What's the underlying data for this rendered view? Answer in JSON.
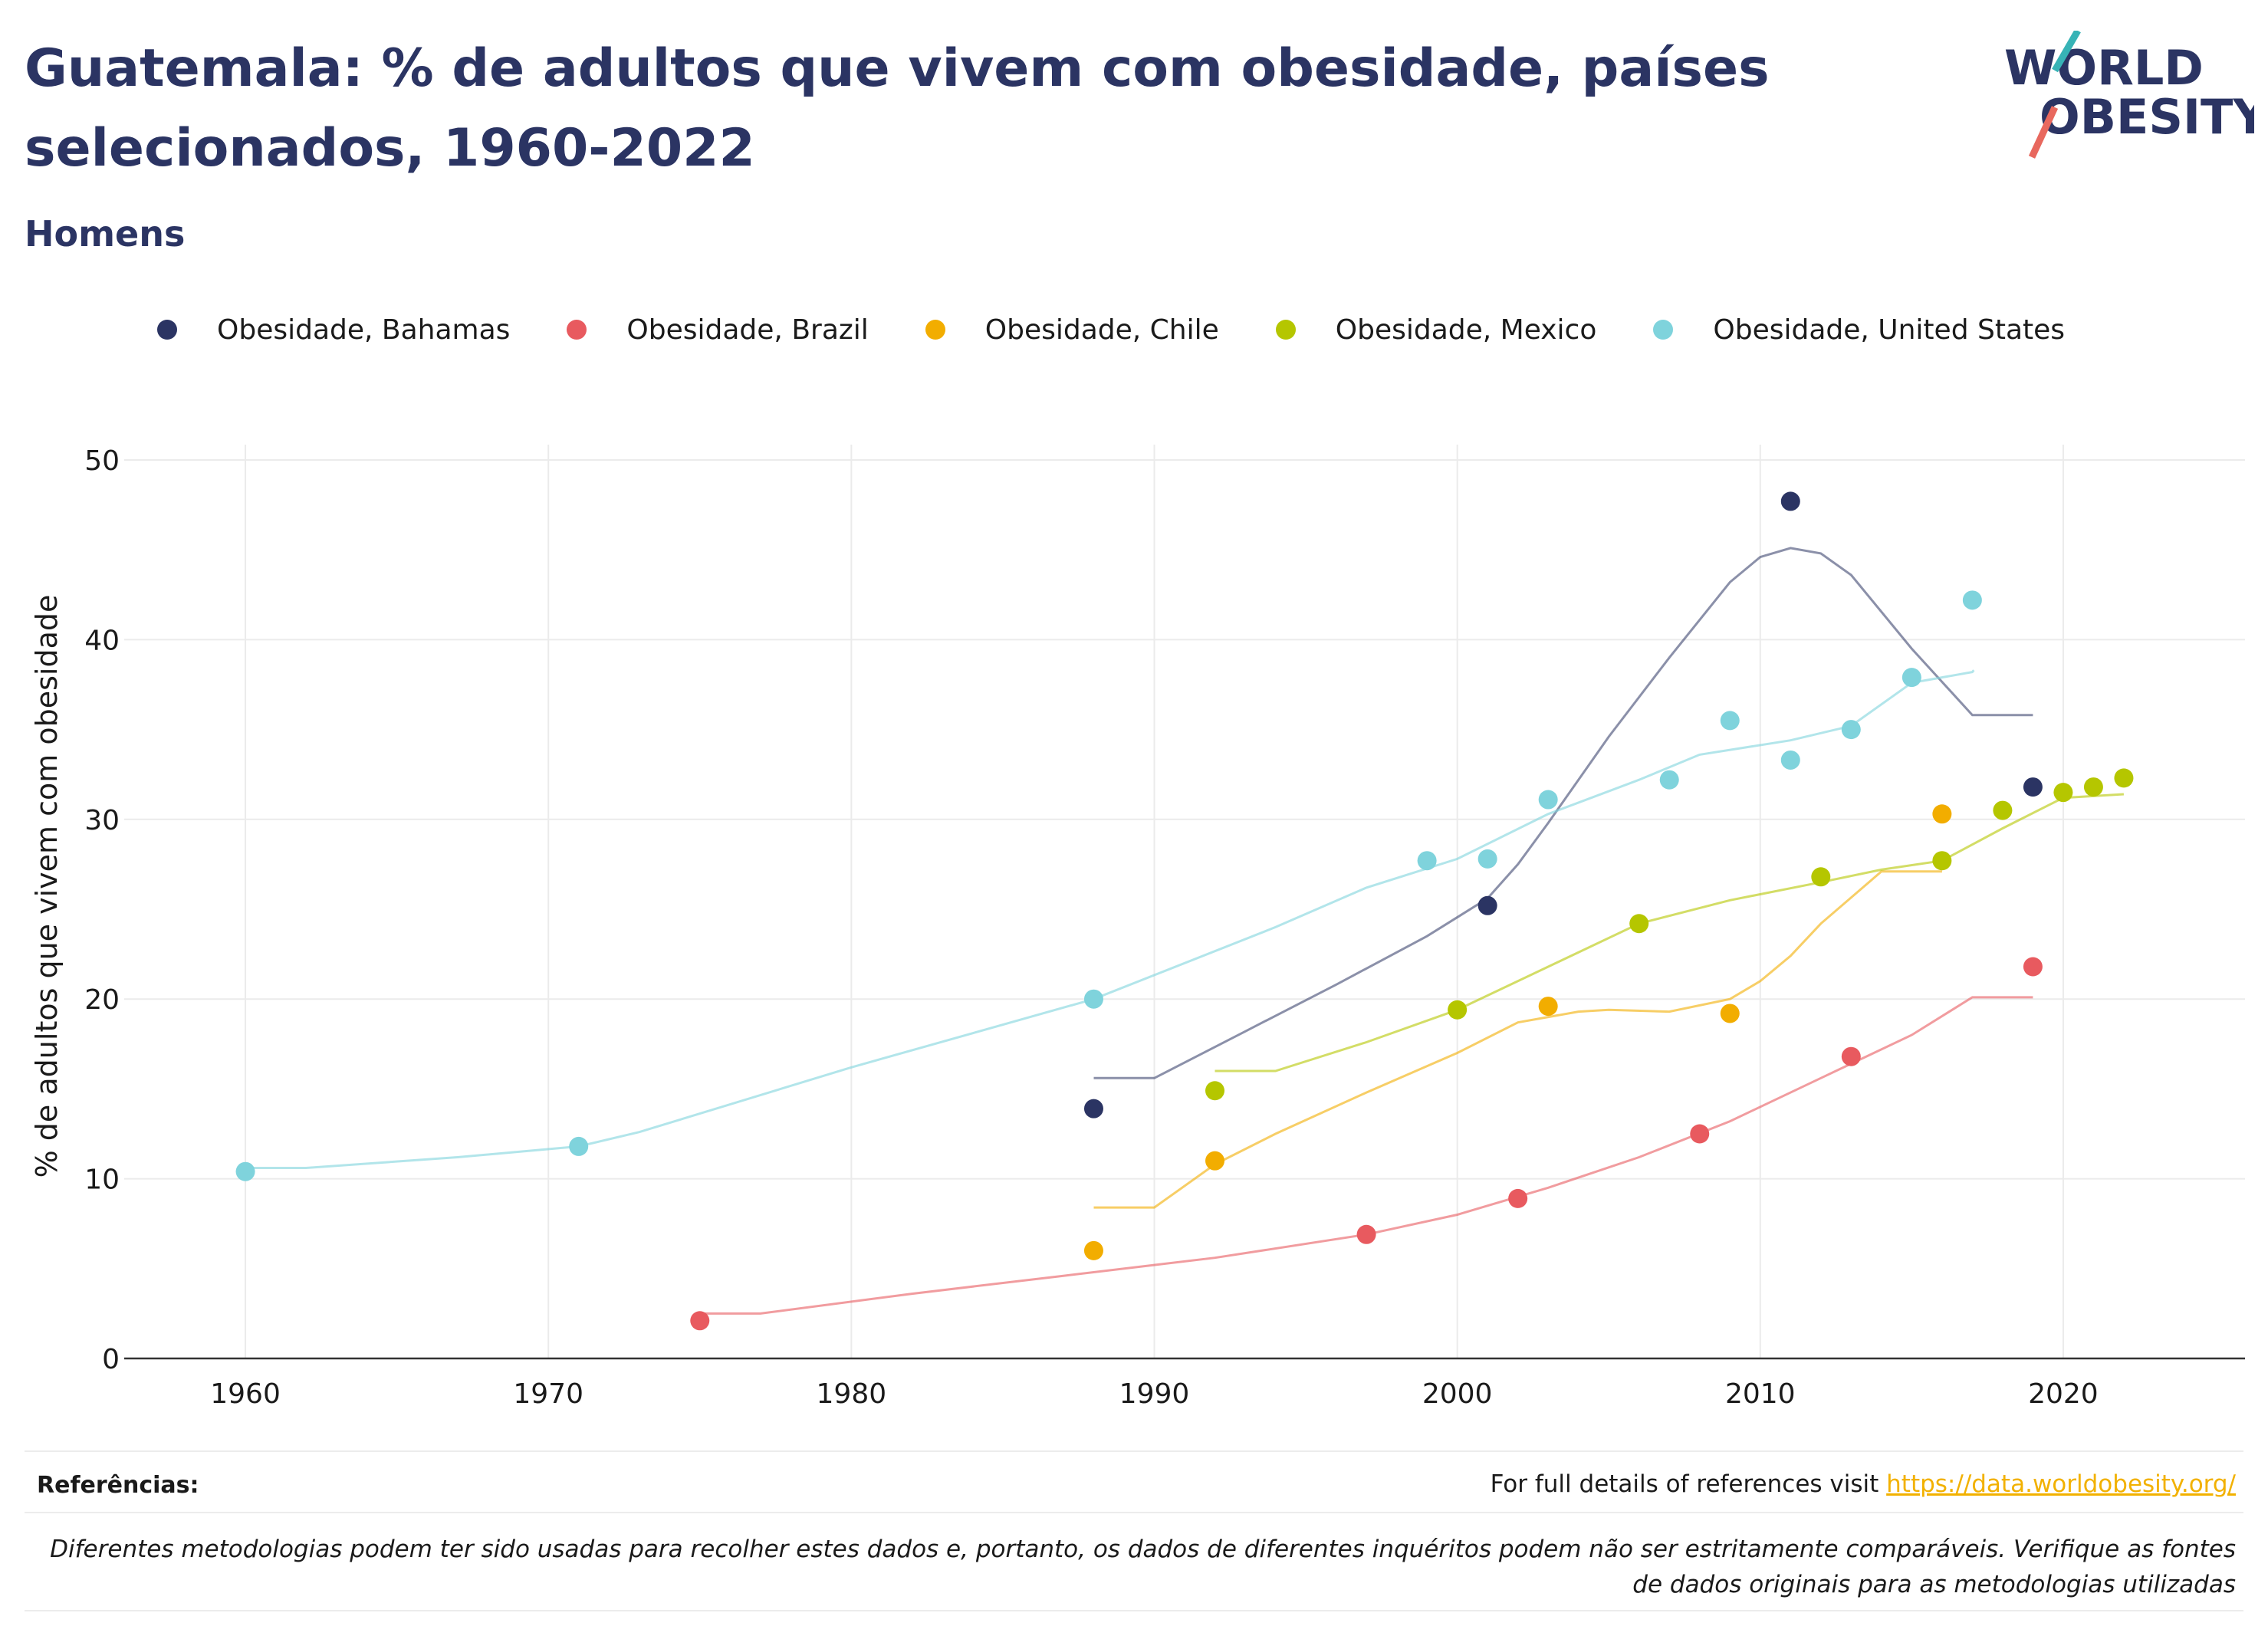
{
  "title": "Guatemala: % de adultos que vivem com obesidade, países selecionados, 1960-2022",
  "subtitle": "Homens",
  "logo": {
    "line1": "WORLD",
    "line2": "OBESITY"
  },
  "footer": {
    "refs_label": "Referências:",
    "refs_text": "For full details of references visit ",
    "refs_link": "https://data.worldobesity.org/",
    "note": "Diferentes metodologias podem ter sido usadas para recolher estes dados e, portanto, os dados de diferentes inquéritos podem não ser estritamente comparáveis. Verifique as fontes de dados originais para as metodologias utilizadas"
  },
  "chart_data": {
    "type": "scatter",
    "ylabel": "% de adultos que vivem com obesidade",
    "xlim": [
      1956,
      2026
    ],
    "ylim": [
      0,
      50
    ],
    "xticks": [
      1960,
      1970,
      1980,
      1990,
      2000,
      2010,
      2020
    ],
    "yticks": [
      0,
      10,
      20,
      30,
      40,
      50
    ],
    "grid": true,
    "legend": "top",
    "series": [
      {
        "name": "Obesidade, Bahamas",
        "color": "#2b3463",
        "points": [
          [
            1988,
            13.9
          ],
          [
            2001,
            25.2
          ],
          [
            2011,
            47.7
          ],
          [
            2019,
            31.8
          ]
        ],
        "trend": [
          [
            1988,
            15.6
          ],
          [
            1990,
            15.6
          ],
          [
            1993,
            18.2
          ],
          [
            1996,
            20.8
          ],
          [
            1999,
            23.5
          ],
          [
            2001,
            25.6
          ],
          [
            2002,
            27.5
          ],
          [
            2003,
            29.8
          ],
          [
            2005,
            34.6
          ],
          [
            2007,
            39.0
          ],
          [
            2009,
            43.2
          ],
          [
            2010,
            44.6
          ],
          [
            2011,
            45.1
          ],
          [
            2012,
            44.8
          ],
          [
            2013,
            43.6
          ],
          [
            2015,
            39.5
          ],
          [
            2017,
            35.8
          ],
          [
            2019,
            35.8
          ]
        ]
      },
      {
        "name": "Obesidade, Brazil",
        "color": "#e85a5f",
        "points": [
          [
            1975,
            2.1
          ],
          [
            1997,
            6.9
          ],
          [
            2002,
            8.9
          ],
          [
            2008,
            12.5
          ],
          [
            2013,
            16.8
          ],
          [
            2019,
            21.8
          ]
        ],
        "trend": [
          [
            1975,
            2.5
          ],
          [
            1977,
            2.5
          ],
          [
            1982,
            3.6
          ],
          [
            1987,
            4.6
          ],
          [
            1992,
            5.6
          ],
          [
            1997,
            6.9
          ],
          [
            2000,
            8.0
          ],
          [
            2003,
            9.5
          ],
          [
            2006,
            11.2
          ],
          [
            2009,
            13.2
          ],
          [
            2012,
            15.6
          ],
          [
            2015,
            18.0
          ],
          [
            2017,
            20.1
          ],
          [
            2019,
            20.1
          ]
        ]
      },
      {
        "name": "Obesidade, Chile",
        "color": "#f2ad00",
        "points": [
          [
            1988,
            6.0
          ],
          [
            1992,
            11.0
          ],
          [
            2003,
            19.6
          ],
          [
            2009,
            19.2
          ],
          [
            2016,
            30.3
          ]
        ],
        "trend": [
          [
            1988,
            8.4
          ],
          [
            1990,
            8.4
          ],
          [
            1992,
            10.8
          ],
          [
            1994,
            12.5
          ],
          [
            1997,
            14.8
          ],
          [
            2000,
            17.0
          ],
          [
            2002,
            18.7
          ],
          [
            2004,
            19.3
          ],
          [
            2005,
            19.4
          ],
          [
            2007,
            19.3
          ],
          [
            2009,
            20.0
          ],
          [
            2010,
            21.0
          ],
          [
            2011,
            22.4
          ],
          [
            2012,
            24.2
          ],
          [
            2014,
            27.1
          ],
          [
            2016,
            27.1
          ]
        ]
      },
      {
        "name": "Obesidade, Mexico",
        "color": "#b5c600",
        "points": [
          [
            1992,
            14.9
          ],
          [
            2000,
            19.4
          ],
          [
            2006,
            24.2
          ],
          [
            2012,
            26.8
          ],
          [
            2016,
            27.7
          ],
          [
            2018,
            30.5
          ],
          [
            2020,
            31.5
          ],
          [
            2021,
            31.8
          ],
          [
            2022,
            32.3
          ]
        ],
        "trend": [
          [
            1992,
            16.0
          ],
          [
            1994,
            16.0
          ],
          [
            1997,
            17.6
          ],
          [
            2000,
            19.4
          ],
          [
            2003,
            21.8
          ],
          [
            2006,
            24.2
          ],
          [
            2009,
            25.5
          ],
          [
            2012,
            26.5
          ],
          [
            2014,
            27.2
          ],
          [
            2016,
            27.7
          ],
          [
            2018,
            29.5
          ],
          [
            2020,
            31.2
          ],
          [
            2022,
            31.4
          ]
        ]
      },
      {
        "name": "Obesidade, United States",
        "color": "#7fd3dc",
        "points": [
          [
            1960,
            10.4
          ],
          [
            1971,
            11.8
          ],
          [
            1988,
            20.0
          ],
          [
            1999,
            27.7
          ],
          [
            2001,
            27.8
          ],
          [
            2003,
            31.1
          ],
          [
            2007,
            32.2
          ],
          [
            2009,
            35.5
          ],
          [
            2011,
            33.3
          ],
          [
            2013,
            35.0
          ],
          [
            2015,
            37.9
          ],
          [
            2017,
            42.2
          ]
        ],
        "trend": [
          [
            1960,
            10.6
          ],
          [
            1962,
            10.6
          ],
          [
            1967,
            11.2
          ],
          [
            1971,
            11.8
          ],
          [
            1973,
            12.6
          ],
          [
            1980,
            16.2
          ],
          [
            1988,
            20.0
          ],
          [
            1994,
            24.0
          ],
          [
            1997,
            26.2
          ],
          [
            2000,
            27.8
          ],
          [
            2003,
            30.3
          ],
          [
            2006,
            32.2
          ],
          [
            2008,
            33.6
          ],
          [
            2011,
            34.4
          ],
          [
            2013,
            35.2
          ],
          [
            2015,
            37.6
          ],
          [
            2017,
            38.2
          ],
          [
            2017.05,
            38.3
          ]
        ]
      }
    ]
  }
}
